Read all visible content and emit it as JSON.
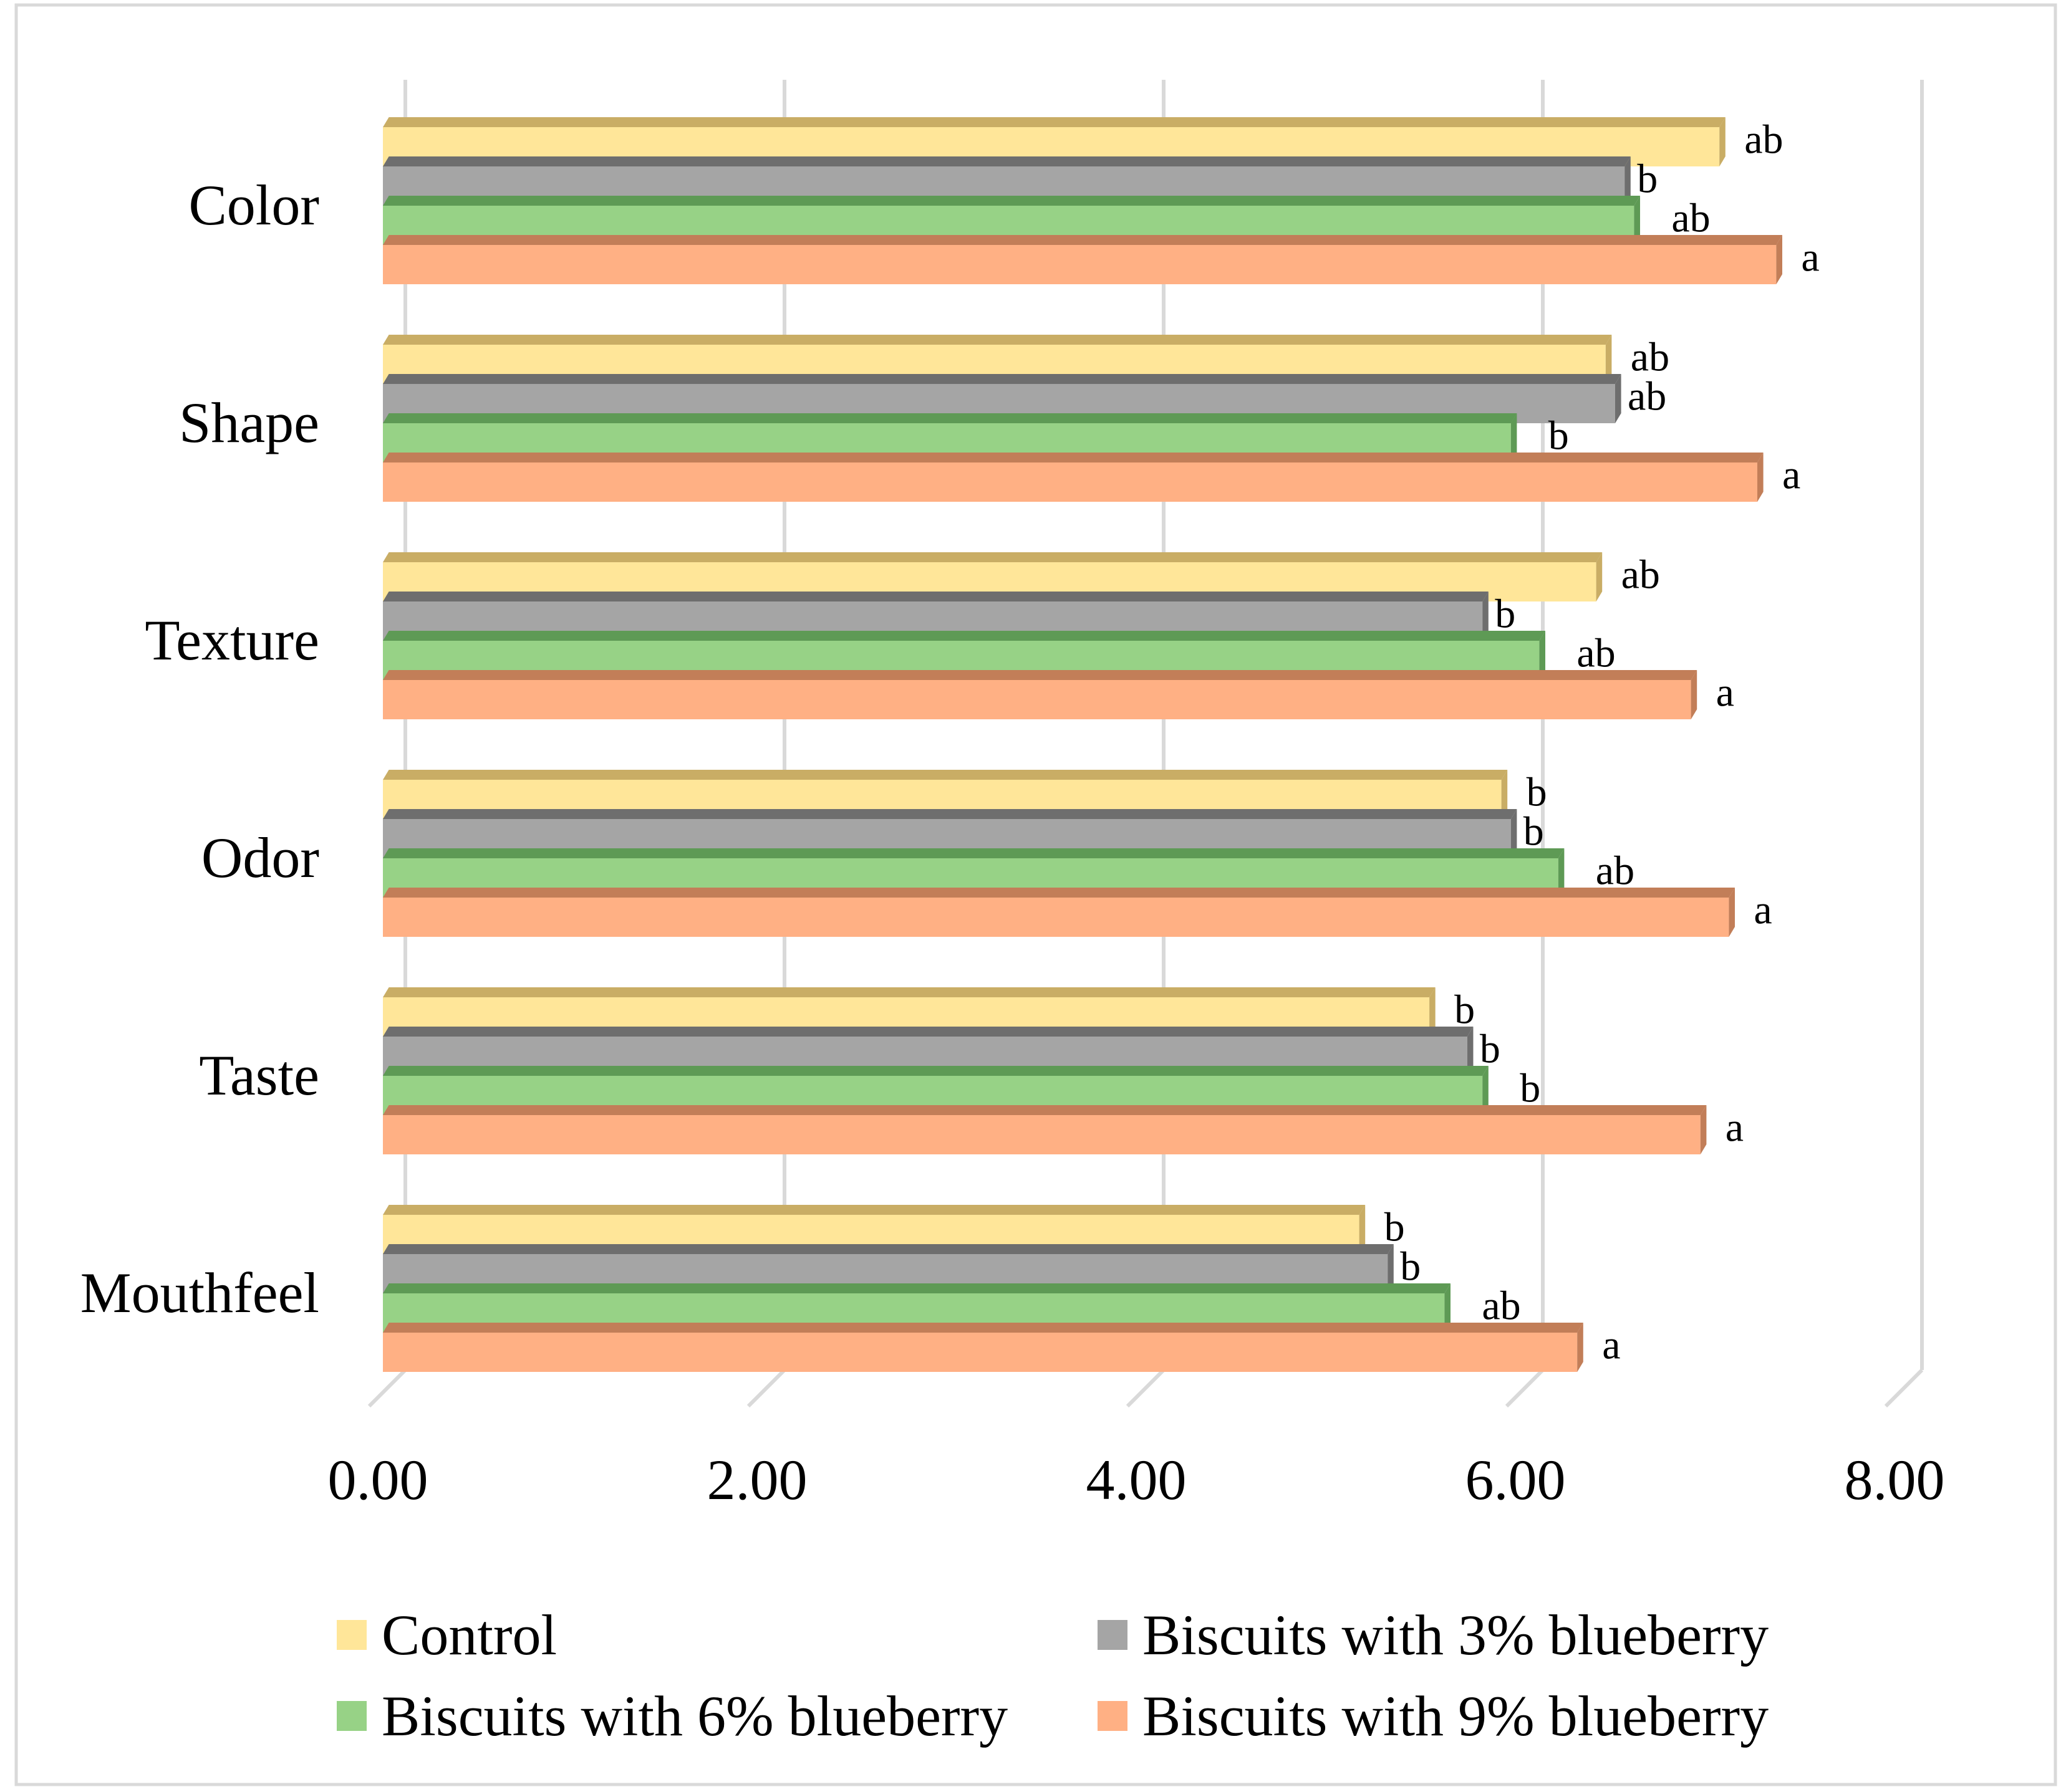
{
  "chart_data": {
    "type": "bar",
    "orientation": "horizontal",
    "title": "",
    "xlabel": "",
    "ylabel": "",
    "xlim": [
      0,
      8
    ],
    "x_ticks": [
      "0.00",
      "2.00",
      "4.00",
      "6.00",
      "8.00"
    ],
    "grid": true,
    "legend_position": "bottom",
    "categories": [
      "Color",
      "Shape",
      "Texture",
      "Odor",
      "Taste",
      "Mouthfeel"
    ],
    "series": [
      {
        "name": "Control",
        "color": "#FFE699",
        "side_color": "#C9AD65",
        "values": [
          7.05,
          6.45,
          6.4,
          5.9,
          5.52,
          5.15
        ],
        "labels": [
          "ab",
          "ab",
          "ab",
          "b",
          "b",
          "b"
        ]
      },
      {
        "name": "Biscuits with 3% blueberry",
        "color": "#A5A5A5",
        "side_color": "#6E6E6E",
        "values": [
          6.55,
          6.5,
          5.8,
          5.95,
          5.72,
          5.3
        ],
        "labels": [
          "b",
          "ab",
          "b",
          "b",
          "b",
          "b"
        ]
      },
      {
        "name": "Biscuits with 6% blueberry",
        "color": "#97D286",
        "side_color": "#5E9A55",
        "values": [
          6.6,
          5.95,
          6.1,
          6.2,
          5.8,
          5.6
        ],
        "labels": [
          "ab",
          "b",
          "ab",
          "ab",
          "b",
          "ab"
        ]
      },
      {
        "name": "Biscuits with 9% blueberry",
        "color": "#FFB084",
        "side_color": "#C27E58",
        "values": [
          7.35,
          7.25,
          6.9,
          7.1,
          6.95,
          6.3
        ],
        "labels": [
          "a",
          "a",
          "a",
          "a",
          "a",
          "a"
        ]
      }
    ]
  }
}
